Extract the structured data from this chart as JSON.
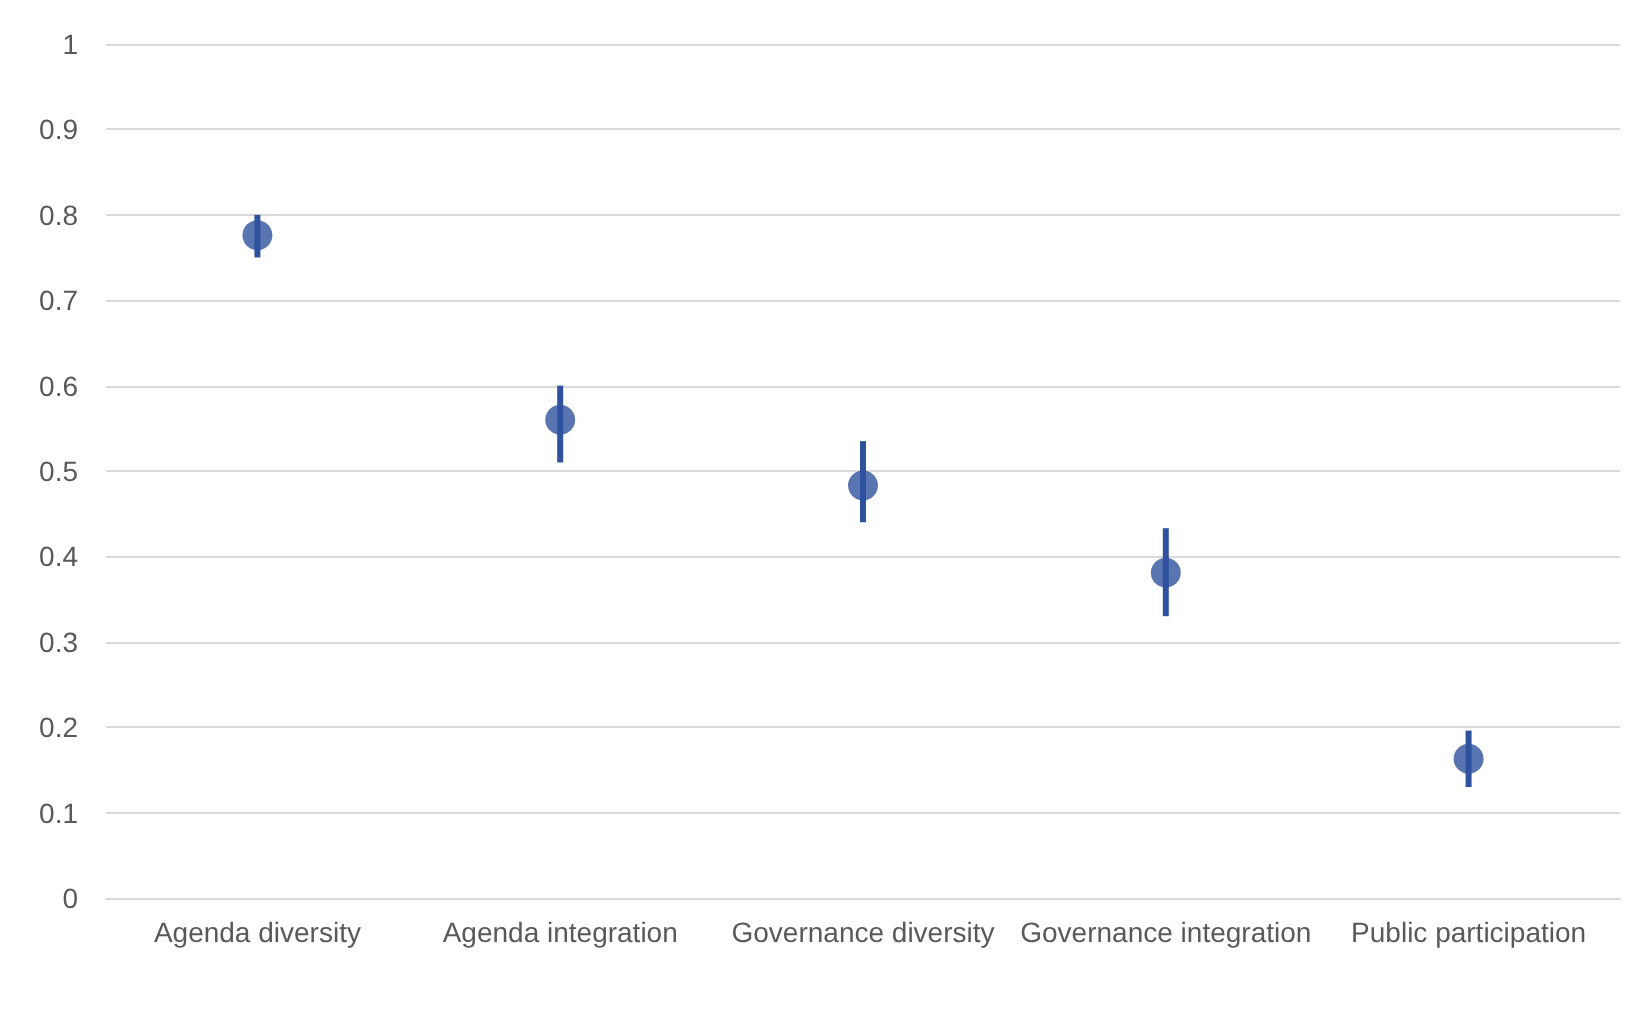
{
  "chart_data": {
    "type": "scatter",
    "categories": [
      "Agenda diversity",
      "Agenda integration",
      "Governance diversity",
      "Governance integration",
      "Public participation"
    ],
    "values": [
      0.776,
      0.56,
      0.483,
      0.381,
      0.163
    ],
    "errors": [
      [
        0.75,
        0.8
      ],
      [
        0.51,
        0.6
      ],
      [
        0.44,
        0.535
      ],
      [
        0.33,
        0.433
      ],
      [
        0.13,
        0.196
      ]
    ],
    "color": "#2f529e",
    "marker": "circle",
    "grid": "y",
    "ylim": [
      0,
      1
    ],
    "yticks": [
      0,
      0.1,
      0.2,
      0.3,
      0.4,
      0.5,
      0.6,
      0.7,
      0.8,
      0.9,
      1
    ]
  }
}
